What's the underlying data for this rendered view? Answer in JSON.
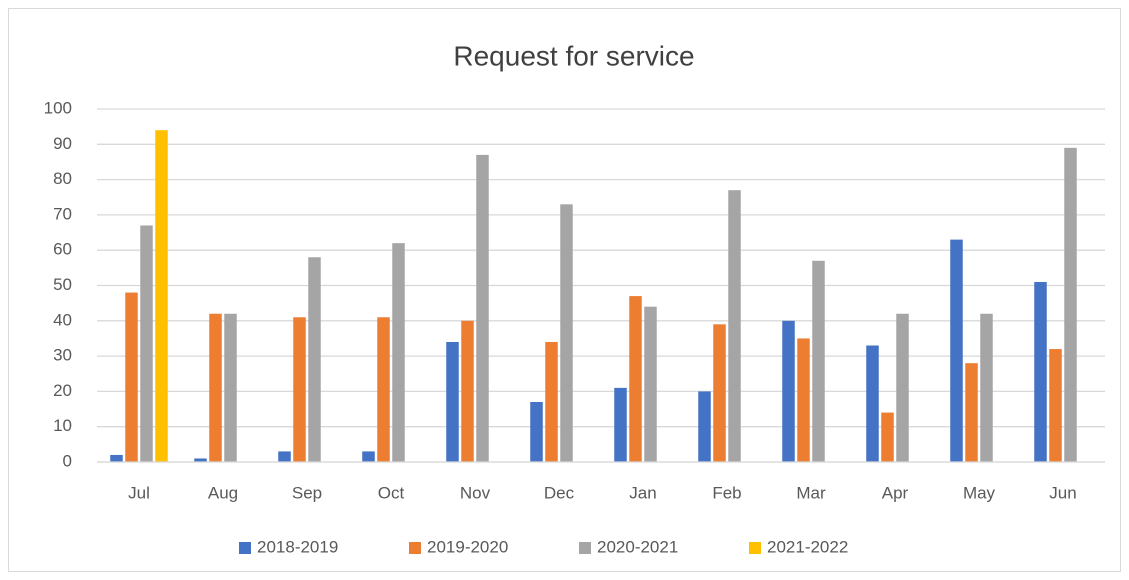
{
  "chart_data": {
    "type": "bar",
    "title": "Request for service",
    "categories": [
      "Jul",
      "Aug",
      "Sep",
      "Oct",
      "Nov",
      "Dec",
      "Jan",
      "Feb",
      "Mar",
      "Apr",
      "May",
      "Jun"
    ],
    "series": [
      {
        "name": "2018-2019",
        "color": "#4472c4",
        "values": [
          2,
          1,
          3,
          3,
          34,
          17,
          21,
          20,
          40,
          33,
          63,
          51
        ]
      },
      {
        "name": "2019-2020",
        "color": "#ed7d31",
        "values": [
          48,
          42,
          41,
          41,
          40,
          34,
          47,
          39,
          35,
          14,
          28,
          32
        ]
      },
      {
        "name": "2020-2021",
        "color": "#a5a5a5",
        "values": [
          67,
          42,
          58,
          62,
          87,
          73,
          44,
          77,
          57,
          42,
          42,
          89
        ]
      },
      {
        "name": "2021-2022",
        "color": "#ffc000",
        "values": [
          94,
          null,
          null,
          null,
          null,
          null,
          null,
          null,
          null,
          null,
          null,
          null
        ]
      }
    ],
    "ylim": [
      0,
      100
    ],
    "yticks": [
      0,
      10,
      20,
      30,
      40,
      50,
      60,
      70,
      80,
      90,
      100
    ],
    "grid": true,
    "legend": "bottom"
  }
}
